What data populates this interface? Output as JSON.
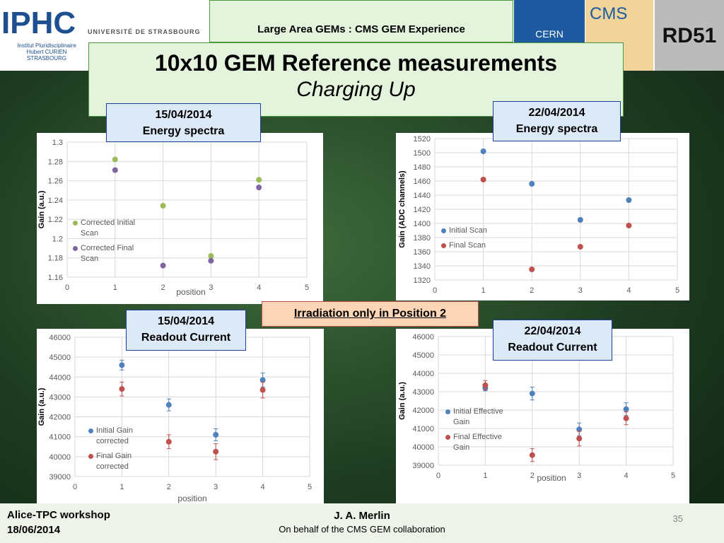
{
  "logos": {
    "iphc": "IPHC",
    "university": "UNIVERSITÉ DE STRASBOURG",
    "institute": [
      "Institut Pluridisciplinaire",
      "Hubert CURIEN",
      "STRASBOURG"
    ],
    "cern": "CERN",
    "cms": "CMS",
    "rd51": "RD51"
  },
  "header": "Large Area GEMs : CMS GEM Experience",
  "title": "10x10 GEM Reference measurements",
  "subtitle": "Charging Up",
  "boxes": [
    [
      "15/04/2014",
      "Energy spectra"
    ],
    [
      "22/04/2014",
      "Energy spectra"
    ],
    [
      "15/04/2014",
      "Readout Current"
    ],
    [
      "22/04/2014",
      "Readout Current"
    ]
  ],
  "note": "Irradiation only in Position 2",
  "footer": {
    "event": "Alice-TPC workshop",
    "date": "18/06/2014",
    "author": "J. A. Merlin",
    "collab": "On behalf of the CMS GEM collaboration",
    "page": "35"
  },
  "chart_data": [
    {
      "type": "scatter",
      "x": [
        1,
        2,
        3,
        4
      ],
      "xlim": [
        0,
        5
      ],
      "xticks": [
        0,
        1,
        2,
        3,
        4,
        5
      ],
      "ylim": [
        1.16,
        1.3
      ],
      "yticks": [
        1.16,
        1.18,
        1.2,
        1.22,
        1.24,
        1.26,
        1.28,
        1.3
      ],
      "grid": true,
      "xlabel": "position",
      "ylabel": "Gain (a.u.)",
      "legend": "left",
      "series": [
        {
          "name": "Corrected Initial Scan",
          "color": "#9bbb59",
          "values": [
            1.282,
            1.234,
            1.182,
            1.261
          ]
        },
        {
          "name": "Corrected Final Scan",
          "color": "#8064a2",
          "values": [
            1.271,
            1.172,
            1.177,
            1.253
          ]
        }
      ]
    },
    {
      "type": "scatter",
      "x": [
        1,
        2,
        3,
        4
      ],
      "xlim": [
        0,
        5
      ],
      "xticks": [
        0,
        1,
        2,
        3,
        4,
        5
      ],
      "ylim": [
        1320,
        1520
      ],
      "yticks": [
        1320,
        1340,
        1360,
        1380,
        1400,
        1420,
        1440,
        1460,
        1480,
        1500,
        1520
      ],
      "grid": true,
      "ylabel": "Gain (ADC channels)",
      "legend": "left",
      "series": [
        {
          "name": "Initial Scan",
          "color": "#4f81bd",
          "values": [
            1502,
            1456,
            1405,
            1433
          ]
        },
        {
          "name": "Final Scan",
          "color": "#c0504d",
          "values": [
            1462,
            1335,
            1367,
            1397
          ]
        }
      ]
    },
    {
      "type": "scatter",
      "x": [
        1,
        2,
        3,
        4
      ],
      "xlim": [
        0,
        5
      ],
      "xticks": [
        0,
        1,
        2,
        3,
        4,
        5
      ],
      "ylim": [
        39000,
        46000
      ],
      "yticks": [
        39000,
        40000,
        41000,
        42000,
        43000,
        44000,
        45000,
        46000
      ],
      "grid": true,
      "xlabel": "position",
      "ylabel": "Gain (a.u.)",
      "legend": "left",
      "series": [
        {
          "name": "Initial Gain corrected",
          "color": "#4f81bd",
          "values": [
            44600,
            42600,
            41100,
            43850
          ],
          "errors": [
            250,
            300,
            300,
            350
          ]
        },
        {
          "name": "Final Gain corrected",
          "color": "#c0504d",
          "values": [
            43400,
            40750,
            40250,
            43350
          ],
          "errors": [
            350,
            350,
            400,
            400
          ]
        }
      ]
    },
    {
      "type": "scatter",
      "x": [
        1,
        2,
        3,
        4
      ],
      "xlim": [
        0,
        5
      ],
      "xticks": [
        0,
        1,
        2,
        3,
        4,
        5
      ],
      "ylim": [
        39000,
        46000
      ],
      "yticks": [
        39000,
        40000,
        41000,
        42000,
        43000,
        44000,
        45000,
        46000
      ],
      "grid": true,
      "xlabel": "position",
      "ylabel": "Gain (a.u.)",
      "legend": "left",
      "series": [
        {
          "name": "Initial Effective Gain",
          "color": "#4f81bd",
          "values": [
            43200,
            42900,
            40950,
            42050
          ],
          "errors": [
            150,
            350,
            350,
            350
          ]
        },
        {
          "name": "Final Effective Gain",
          "color": "#c0504d",
          "values": [
            43350,
            39550,
            40450,
            41550
          ],
          "errors": [
            250,
            350,
            400,
            350
          ]
        }
      ]
    }
  ]
}
